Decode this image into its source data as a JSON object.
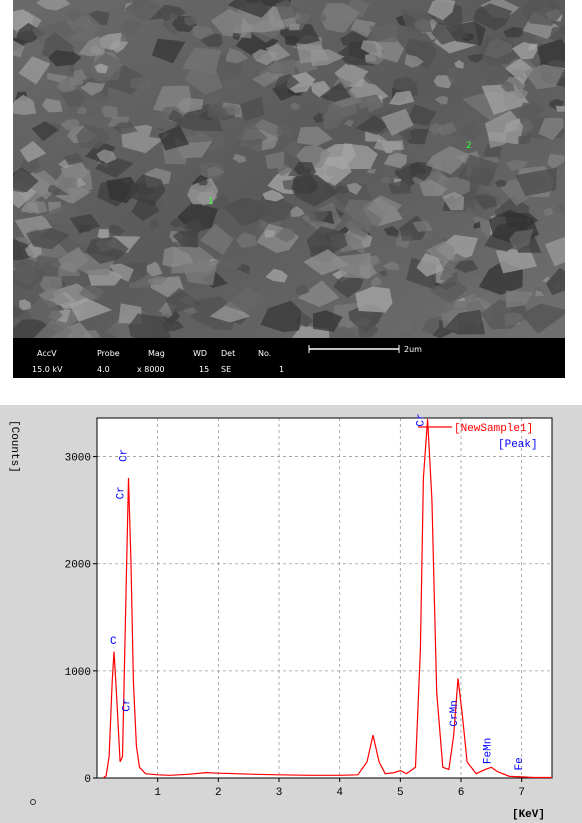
{
  "sem_image": {
    "markers": [
      "1",
      "2"
    ],
    "info_headers": [
      "AccV",
      "Probe",
      "Mag",
      "WD",
      "Det",
      "No."
    ],
    "info_values": [
      "15.0 kV",
      "4.0",
      "x 8000",
      "15",
      "SE",
      "1"
    ],
    "scale_bar": "2um"
  },
  "chart_data": {
    "type": "line",
    "ylabel": "[Counts]",
    "xlabel": "[KeV]",
    "x": [
      0.1,
      0.15,
      0.2,
      0.25,
      0.28,
      0.32,
      0.38,
      0.42,
      0.47,
      0.52,
      0.56,
      0.6,
      0.65,
      0.7,
      0.8,
      1.0,
      1.2,
      1.5,
      1.8,
      2.0,
      2.3,
      2.6,
      3.0,
      3.5,
      4.0,
      4.3,
      4.45,
      4.55,
      4.65,
      4.75,
      4.9,
      5.0,
      5.1,
      5.25,
      5.33,
      5.38,
      5.45,
      5.52,
      5.6,
      5.7,
      5.8,
      5.88,
      5.95,
      6.02,
      6.1,
      6.25,
      6.4,
      6.5,
      6.6,
      6.8,
      7.0,
      7.2,
      7.5
    ],
    "series": [
      {
        "name": "[NewSample1]",
        "color": "#ff0000",
        "values": [
          0,
          20,
          200,
          900,
          1180,
          800,
          150,
          200,
          1500,
          2800,
          2000,
          900,
          300,
          100,
          40,
          30,
          25,
          35,
          50,
          45,
          40,
          35,
          30,
          25,
          25,
          30,
          150,
          400,
          150,
          40,
          50,
          70,
          40,
          100,
          1200,
          2800,
          3350,
          2600,
          800,
          100,
          80,
          400,
          930,
          600,
          150,
          40,
          80,
          100,
          60,
          15,
          10,
          5,
          5
        ]
      }
    ],
    "peak_legend": "[Peak]",
    "peak_color": "#0000ff",
    "annotations": [
      {
        "text": "C",
        "x": 0.28,
        "y": 1250
      },
      {
        "text": "Cr",
        "x": 0.5,
        "y": 2600
      },
      {
        "text": "Cr",
        "x": 0.55,
        "y": 2950
      },
      {
        "text": "Cr",
        "x": 0.6,
        "y": 620
      },
      {
        "text": "Cr",
        "x": 5.45,
        "y": 3280
      },
      {
        "text": "CrMn",
        "x": 6.0,
        "y": 480
      },
      {
        "text": "FeMn",
        "x": 6.55,
        "y": 130
      },
      {
        "text": "Fe",
        "x": 7.07,
        "y": 70
      }
    ],
    "xlim": [
      0,
      7.5
    ],
    "ylim": [
      0,
      3360
    ],
    "xticks": [
      1,
      2,
      3,
      4,
      5,
      6,
      7
    ],
    "yticks": [
      0,
      1000,
      2000,
      3000
    ],
    "grid": true
  }
}
